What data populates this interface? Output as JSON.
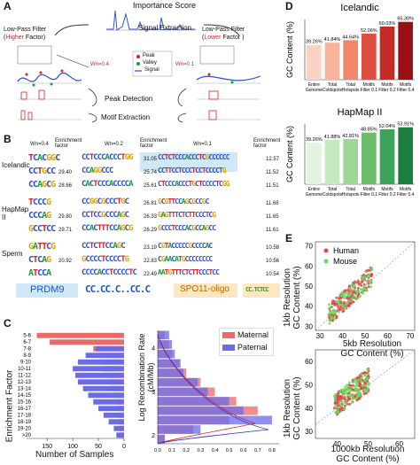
{
  "panels": {
    "a": "A",
    "b": "B",
    "c": "C",
    "d": "D",
    "e": "E"
  },
  "panel_a": {
    "title": "Importance Score",
    "signal_extraction": "Signal Extraction",
    "lpf_left": "Low-Pass Filter",
    "lpf_left_paren_open": "(",
    "lpf_left_emph": "Higher",
    "lpf_left_factor": " Factor)",
    "lpf_right": "Low-Pass Filter",
    "lpf_right_paren_open": "(",
    "lpf_right_emph": "Lower",
    "lpf_right_factor": " Factor )",
    "wn_left": "Wn=0.4",
    "wn_right": "Wn=0.1",
    "legend": [
      "Peak",
      "Valley",
      "Signal"
    ],
    "peak_detection": "Peak Detection",
    "motif_extraction": "Motif Extraction"
  },
  "panel_b": {
    "headers": [
      "Wn=0.4",
      "Enrichment factor",
      "Wn=0.2",
      "Enrichment factor",
      "Wn=0.1",
      "Enrichment factor"
    ],
    "groups": [
      {
        "name": "Icelandic",
        "rows": [
          {
            "m1": "TCACGGC",
            "e1": "",
            "m2": "CCTCCCACCCTGG",
            "e2": "31.05",
            "m3": "CCTCTCCCACCCTCGCCCCCC",
            "e3": "12.57"
          },
          {
            "m1": "CCTGCC",
            "e1": "29.40",
            "m2": "CCAGGCCC",
            "e2": "25.74",
            "m3": "CCTTCCTCCCTCCTCCCCTG",
            "e3": "11.52"
          },
          {
            "m1": "CCAGCG",
            "e1": "28.66",
            "m2": "CACTCCCACCCCA",
            "e2": "25.61",
            "m3": "CTCCCACCCTGCTCCCCTCGG",
            "e3": "11.51"
          }
        ]
      },
      {
        "name": "HapMap II",
        "rows": [
          {
            "m1": "TCCCG",
            "e1": "",
            "m2": "CCGGCGCCCTGC",
            "e2": "26.81",
            "m3": "GCGTTCCAGCGCCGC",
            "e3": "11.68"
          },
          {
            "m1": "CCCAG",
            "e1": "29.80",
            "m2": "CCTCCGCCCAGC",
            "e2": "26.33",
            "m3": "GAGTTTCTCTTCCCTCG",
            "e3": "11.65"
          },
          {
            "m1": "GCCTCC",
            "e1": "29.71",
            "m2": "CCACTTTCCAGCG",
            "e2": "26.29",
            "m3": "GCCCTCCCACGCCAGCC",
            "e3": "11.61"
          }
        ]
      },
      {
        "name": "Sperm",
        "rows": [
          {
            "m1": "GATTCG",
            "e1": "",
            "m2": "CCTCTTCCAGC",
            "e2": "23.19",
            "m3": "CGTACCCCCGCCCCAC",
            "e3": "10.58"
          },
          {
            "m1": "CTCAG",
            "e1": "20.92",
            "m2": "GCCCCTCCCCTG",
            "e2": "22.83",
            "m3": "CGAACATGCCCCCCCC",
            "e3": "10.56"
          },
          {
            "m1": "ATCCA",
            "e1": "",
            "m2": "CCCCACCTCCCCTC",
            "e2": "22.49",
            "m3": "AATGTTTCTCTTCCCTCC",
            "e3": "10.54"
          }
        ]
      }
    ],
    "prdm9": "PRDM9",
    "prdm9_motif": "CC.CC.C..CC.C",
    "spo11": "SPO11-oligo",
    "spo11_motif": "CC.TCTCC"
  },
  "panel_c": {
    "left_ylabel": "Enrichment Factor",
    "left_xlabel": "Number of Samples",
    "right_ylabel": "Log Recombination Rate\n(cM/Mb)",
    "legend": [
      "Maternal",
      "Paternal"
    ],
    "colors": {
      "maternal": "#e86a6a",
      "paternal": "#6b6be8",
      "overlap": "#8a4a9a"
    }
  },
  "chart_data": [
    {
      "type": "bar",
      "title": "",
      "xlabel": "Number of Samples",
      "ylabel": "Enrichment Factor",
      "orientation": "horizontal",
      "categories": [
        "5-6",
        "6-7",
        "7-8",
        "8-9",
        "9-10",
        "10-11",
        "11-12",
        "12-13",
        "13-14",
        "14-15",
        "15-16",
        "16-17",
        "17-18",
        "18-19",
        "19-20",
        ">20"
      ],
      "series": [
        {
          "name": "",
          "color": "#e86a6a",
          "values": [
            170,
            145,
            60,
            50,
            45,
            40,
            30,
            30,
            25,
            20,
            15,
            15,
            10,
            10,
            10,
            8
          ]
        },
        {
          "name": "",
          "color": "#6b6be8",
          "values": [
            0,
            0,
            55,
            75,
            90,
            100,
            95,
            90,
            80,
            70,
            60,
            50,
            40,
            30,
            20,
            15
          ]
        }
      ],
      "xticks": [
        "150",
        "100",
        "50",
        "0"
      ],
      "xlim": [
        0,
        190
      ]
    },
    {
      "type": "bar",
      "title": "",
      "xlabel": "",
      "ylabel": "Log Recombination Rate\n(cM/Mb)",
      "orientation": "horizontal",
      "categories": [
        "4.2",
        "4.0",
        "3.8",
        "3.6",
        "3.4",
        "3.2",
        "3.0",
        "2.8",
        "2.6",
        "2.4",
        "2.2",
        "2.0"
      ],
      "series": [
        {
          "name": "Maternal",
          "values": [
            0.05,
            0.08,
            0.1,
            0.15,
            0.2,
            0.3,
            0.4,
            0.55,
            0.7,
            0.5,
            0.25,
            0.05
          ]
        },
        {
          "name": "Paternal",
          "values": [
            0.08,
            0.1,
            0.12,
            0.16,
            0.18,
            0.28,
            0.35,
            0.5,
            0.6,
            0.8,
            0.3,
            0.05
          ]
        }
      ],
      "xticks": [
        "0.0",
        "0.1",
        "0.2",
        "0.3",
        "0.4",
        "0.5",
        "0.6",
        "0.7",
        "0.8"
      ],
      "yticks": [
        "4",
        "3",
        "2"
      ],
      "xlim": [
        0,
        0.85
      ],
      "ylim": [
        1.8,
        4.4
      ]
    },
    {
      "type": "bar",
      "title": "Icelandic",
      "ylabel": "GC Content (%)",
      "categories": [
        "Entire\nGenome",
        "Total\nColdspots",
        "Total\nHotspots",
        "Motifs\nFilter 0.1",
        "Motifs\nFilter 0.2",
        "Motifs\nFilter 0.4"
      ],
      "values": [
        39.26,
        41.84,
        44.64,
        52.06,
        60.03,
        65.3
      ],
      "labels": [
        "39.26%",
        "41.84%",
        "44.64%",
        "52.06%",
        "60.03%",
        "65.30%"
      ],
      "colors": [
        "#fbd3c5",
        "#f8b49a",
        "#f2866a",
        "#df4f3e",
        "#c42a26",
        "#9b1014"
      ],
      "ylim": [
        0,
        68
      ]
    },
    {
      "type": "bar",
      "title": "HapMap II",
      "ylabel": "GC Content (%)",
      "categories": [
        "Entire\nGenome",
        "Total\nColdspots",
        "Total\nHotspots",
        "Motifs\nFilter 0.1",
        "Motifs\nFilter 0.2",
        "Motifs\nFilter 0.4"
      ],
      "values": [
        39.26,
        41.88,
        42.81,
        48.85,
        52.04,
        53.91
      ],
      "labels": [
        "39.26%",
        "41.88%",
        "42.81%",
        "48.85%",
        "52.04%",
        "53.91%"
      ],
      "colors": [
        "#e3f3df",
        "#c6e8c0",
        "#9fd697",
        "#6cbd6c",
        "#3ea35a",
        "#1b7e3e"
      ],
      "ylim": [
        0,
        57
      ]
    },
    {
      "type": "scatter",
      "xlabel": "5kb Resolution\nGC Content (%)",
      "ylabel": "1kb Resolution\nGC Content (%)",
      "xticks": [
        "30",
        "40",
        "50",
        "60",
        "70"
      ],
      "yticks": [
        "30",
        "40",
        "50",
        "60",
        "70"
      ],
      "xlim": [
        28,
        72
      ],
      "ylim": [
        28,
        72
      ],
      "series": [
        {
          "name": "Human",
          "color": "#e0484a"
        },
        {
          "name": "Mouse",
          "color": "#5de05d"
        }
      ]
    },
    {
      "type": "scatter",
      "xlabel": "1000kb Resolution\nGC Content (%)",
      "ylabel": "1kb Resolution\nGC Content (%)",
      "xticks": [
        "40",
        "50",
        "60"
      ],
      "yticks": [
        "30",
        "40",
        "50",
        "60"
      ],
      "xlim": [
        33,
        65
      ],
      "ylim": [
        27,
        65
      ],
      "series": [
        {
          "name": "",
          "color": "#e0484a"
        },
        {
          "name": "",
          "color": "#5de05d"
        }
      ]
    }
  ]
}
